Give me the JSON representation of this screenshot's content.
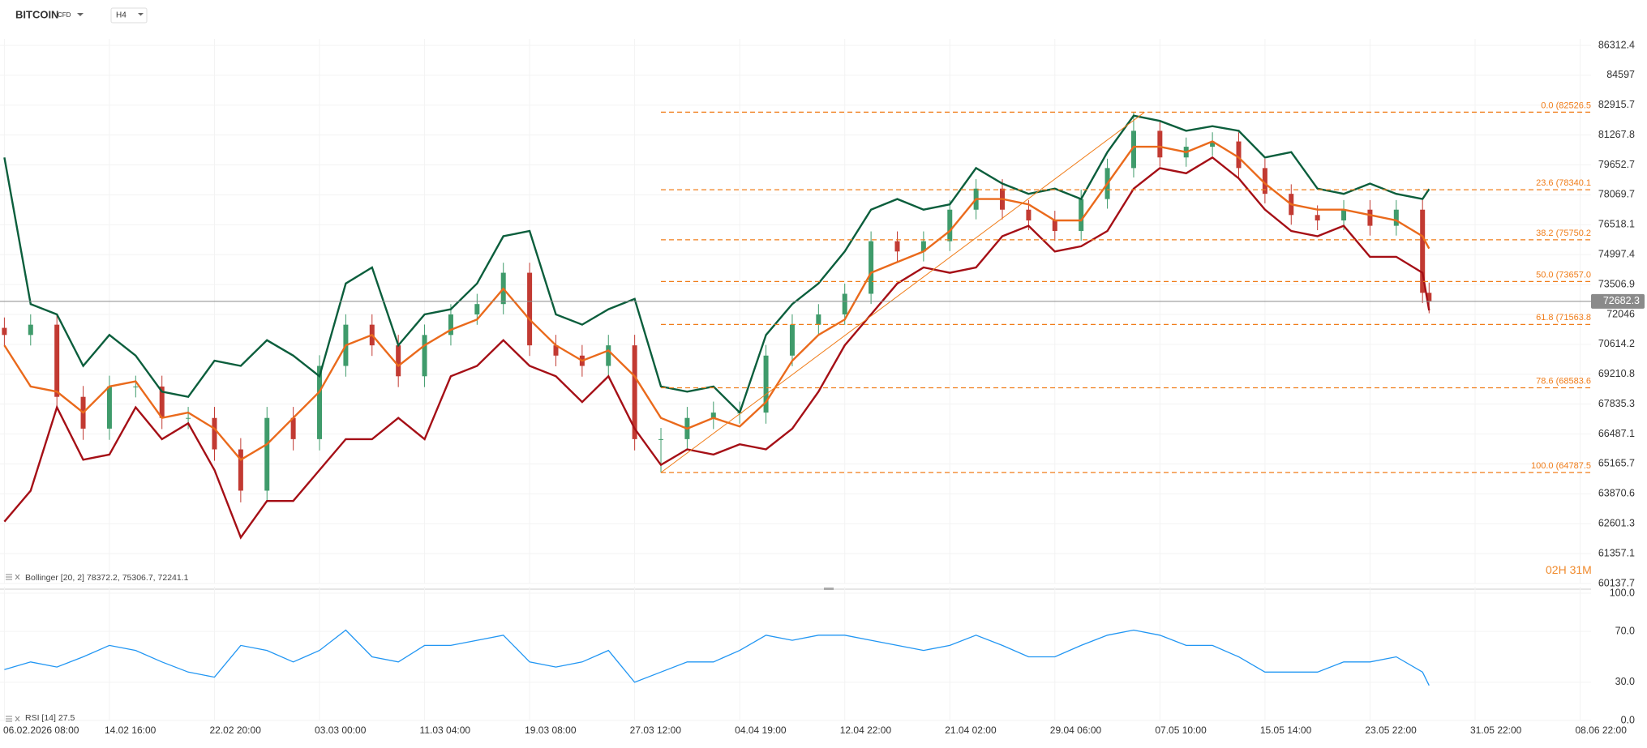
{
  "header": {
    "symbol": "BITCOIN",
    "instrument": "CFD",
    "timeframe": "H4"
  },
  "chart_data": [
    {
      "type": "candlestick",
      "log_scale": true,
      "grid": true,
      "ylim": [
        60137.7,
        86312.4
      ],
      "yticks": [
        86312.4,
        84597.0,
        82915.7,
        81267.8,
        79652.7,
        78069.7,
        76518.1,
        74997.4,
        73506.9,
        72046.0,
        70614.2,
        69210.8,
        67835.3,
        66487.1,
        65165.7,
        63870.6,
        62601.3,
        61357.1,
        60137.7
      ],
      "xlim": [
        -2,
        725
      ],
      "x": [
        0,
        12,
        24,
        36,
        48,
        60,
        72,
        84,
        96,
        108,
        120,
        132,
        144,
        156,
        168,
        180,
        192,
        204,
        216,
        228,
        240,
        252,
        264,
        276,
        288,
        300,
        312,
        324,
        336,
        348,
        360,
        372,
        384,
        396,
        408,
        420,
        432,
        444,
        456,
        468,
        480,
        492,
        504,
        516,
        528,
        540,
        552,
        564,
        576,
        588,
        600,
        612,
        624,
        636,
        648,
        651
      ],
      "up_color": "#3f9b6b",
      "down_color": "#c23a32",
      "candles": {
        "open": [
          71400,
          71059,
          71552,
          68167,
          66728,
          68642,
          68642,
          67209,
          67209,
          65804,
          64005,
          67209,
          66259,
          69598,
          71552,
          70566,
          69116,
          71059,
          72046,
          72550,
          74091,
          70566,
          70082,
          69598,
          70566,
          66259,
          66259,
          67209,
          67450,
          67450,
          70082,
          71552,
          72046,
          73053,
          75677,
          75157,
          75677,
          77297,
          78397,
          77297,
          76740,
          76198,
          77849,
          79487,
          81500,
          80057,
          80633,
          80920,
          79487,
          78124,
          77020,
          76740,
          77297,
          76465,
          77297,
          73100
        ],
        "high": [
          71900,
          72052,
          72052,
          68667,
          69142,
          69142,
          69142,
          67709,
          67709,
          66304,
          67709,
          67709,
          70098,
          72052,
          72052,
          71066,
          71559,
          72546,
          73050,
          74591,
          74591,
          71066,
          70582,
          71066,
          71066,
          66759,
          67709,
          67950,
          67950,
          70582,
          72052,
          72546,
          73553,
          76177,
          76177,
          76177,
          77797,
          78897,
          78897,
          77797,
          77240,
          78349,
          79987,
          82526.5,
          82000,
          81133,
          81420,
          81420,
          79987,
          78624,
          77520,
          77797,
          77797,
          77797,
          77797,
          73600
        ],
        "low": [
          70559,
          70559,
          67667,
          66228,
          66228,
          68142,
          66709,
          66709,
          65304,
          63505,
          63505,
          65759,
          65759,
          69098,
          70066,
          68616,
          68616,
          70559,
          71546,
          72050,
          70066,
          69582,
          69098,
          69098,
          65759,
          64787.5,
          65759,
          66709,
          66950,
          66950,
          69582,
          71052,
          71546,
          72553,
          74657,
          74657,
          75177,
          76797,
          76797,
          76240,
          75698,
          75698,
          77349,
          78987,
          79557,
          79557,
          80133,
          78987,
          77624,
          76520,
          76240,
          76240,
          75965,
          75965,
          72600,
          72100
        ],
        "close": [
          71059,
          71552,
          68167,
          66728,
          68642,
          68642,
          67209,
          67209,
          65804,
          64005,
          67209,
          66259,
          69598,
          71552,
          70566,
          69116,
          71059,
          72046,
          72550,
          74091,
          70566,
          70082,
          69598,
          70566,
          66259,
          66259,
          67209,
          67450,
          67450,
          70082,
          71552,
          72046,
          73053,
          75677,
          75157,
          75677,
          77297,
          78397,
          77297,
          76740,
          76198,
          77849,
          79487,
          81500,
          80057,
          80633,
          80920,
          79487,
          78124,
          77020,
          76740,
          77297,
          76465,
          77297,
          73100,
          72682.3
        ]
      },
      "last_price_color": "#8a8a8a",
      "indicator": {
        "label": "Bollinger [20, 2]"
      },
      "series": [
        {
          "color": "#0b5e3c",
          "values": [
            80057,
            72550,
            72046,
            69598,
            71059,
            70082,
            68405,
            68167,
            69840,
            69598,
            70811,
            70082,
            69116,
            73560,
            74357,
            70566,
            72046,
            72298,
            73560,
            75932,
            76198,
            72046,
            71552,
            72298,
            72802,
            68642,
            68405,
            68642,
            67450,
            71059,
            72550,
            73560,
            75157,
            77297,
            77849,
            77297,
            77573,
            79487,
            78663,
            78124,
            78397,
            77849,
            80345,
            82336,
            82046,
            81500,
            81756,
            81500,
            80057,
            80345,
            78397,
            78124,
            78663,
            78124,
            77849,
            78372.2
          ]
        },
        {
          "color": "#ea6a1c",
          "values": [
            70566,
            68642,
            68405,
            67450,
            68642,
            68880,
            67209,
            67450,
            66728,
            65348,
            66031,
            67209,
            68405,
            70566,
            71059,
            69598,
            70566,
            71306,
            71799,
            73305,
            71799,
            70566,
            69840,
            70324,
            69116,
            67209,
            66728,
            67209,
            66824,
            67930,
            69840,
            71059,
            71799,
            74091,
            74624,
            75157,
            76198,
            77849,
            77849,
            77573,
            76740,
            76740,
            78663,
            80633,
            80633,
            80345,
            80920,
            80057,
            78663,
            77573,
            77297,
            77297,
            77020,
            76740,
            75932,
            75306.7
          ]
        },
        {
          "color": "#a50f16",
          "values": [
            62688,
            64005,
            67691,
            65348,
            65576,
            67691,
            66259,
            66968,
            64899,
            62024,
            63564,
            63564,
            64899,
            66259,
            66259,
            67209,
            66259,
            69116,
            69598,
            70811,
            69598,
            69116,
            67930,
            69116,
            66728,
            65121,
            65804,
            65576,
            66031,
            65804,
            66728,
            68405,
            70566,
            72046,
            73560,
            74357,
            74091,
            74357,
            75932,
            76465,
            75157,
            75420,
            76198,
            78397,
            79487,
            79212,
            80057,
            78937,
            77297,
            76198,
            75932,
            76465,
            74890,
            74890,
            74091,
            72241.1
          ]
        }
      ],
      "fibonacci": {
        "color": "#f07d1a",
        "anchor_x": [
          300,
          521
        ],
        "levels": [
          {
            "value": 82526.5,
            "label": "0.0 (82526.5"
          },
          {
            "value": 78340.1,
            "label": "23.6 (78340.1"
          },
          {
            "value": 75750.2,
            "label": "38.2 (75750.2"
          },
          {
            "value": 73657.0,
            "label": "50.0 (73657.0"
          },
          {
            "value": 71563.8,
            "label": "61.8 (71563.8"
          },
          {
            "value": 68583.6,
            "label": "78.6 (68583.6"
          },
          {
            "value": 64787.5,
            "label": "100.0 (64787.5"
          }
        ]
      },
      "countdown": "02H 31M"
    },
    {
      "type": "line",
      "indicator": {
        "label": "RSI [14]"
      },
      "grid": true,
      "ylim": [
        0,
        100
      ],
      "yticks": [
        {
          "value": 100,
          "label": "100.0"
        },
        {
          "value": 70,
          "label": "70.0"
        },
        {
          "value": 30,
          "label": "30.0"
        },
        {
          "value": 0,
          "label": "0.0"
        }
      ],
      "xlim": [
        -2,
        725
      ],
      "xticks": [
        {
          "value": 0,
          "label": "06.02.2026 08:00"
        },
        {
          "value": 48,
          "label": "14.02 16:00"
        },
        {
          "value": 96,
          "label": "22.02 20:00"
        },
        {
          "value": 144,
          "label": "03.03 00:00"
        },
        {
          "value": 192,
          "label": "11.03 04:00"
        },
        {
          "value": 240,
          "label": "19.03 08:00"
        },
        {
          "value": 288,
          "label": "27.03 12:00"
        },
        {
          "value": 336,
          "label": "04.04 19:00"
        },
        {
          "value": 384,
          "label": "12.04 22:00"
        },
        {
          "value": 432,
          "label": "21.04 02:00"
        },
        {
          "value": 480,
          "label": "29.04 06:00"
        },
        {
          "value": 528,
          "label": "07.05 10:00"
        },
        {
          "value": 576,
          "label": "15.05 14:00"
        },
        {
          "value": 624,
          "label": "23.05 22:00"
        },
        {
          "value": 672,
          "label": "31.05 22:00"
        },
        {
          "value": 720,
          "label": "08.06 22:00"
        }
      ],
      "x": [
        0,
        12,
        24,
        36,
        48,
        60,
        72,
        84,
        96,
        108,
        120,
        132,
        144,
        156,
        168,
        180,
        192,
        204,
        216,
        228,
        240,
        252,
        264,
        276,
        288,
        300,
        312,
        324,
        336,
        348,
        360,
        372,
        384,
        396,
        408,
        420,
        432,
        444,
        456,
        468,
        480,
        492,
        504,
        516,
        528,
        540,
        552,
        564,
        576,
        588,
        600,
        612,
        624,
        636,
        648,
        651
      ],
      "series": [
        {
          "color": "#2196f3",
          "values": [
            40,
            46,
            42,
            50,
            59,
            55,
            46,
            38,
            34,
            59,
            55,
            46,
            55,
            71,
            50,
            46,
            59,
            59,
            63,
            67,
            46,
            42,
            46,
            55,
            30,
            38,
            46,
            46,
            55,
            67,
            63,
            67,
            67,
            63,
            59,
            55,
            59,
            67,
            59,
            50,
            50,
            59,
            67,
            71,
            67,
            59,
            59,
            50,
            38,
            38,
            38,
            46,
            46,
            50,
            38,
            27.5
          ]
        }
      ]
    }
  ]
}
